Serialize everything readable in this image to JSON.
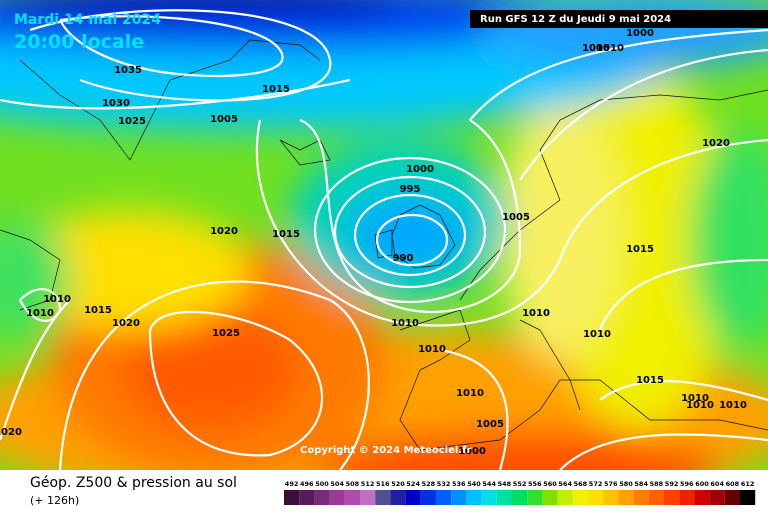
{
  "header": {
    "date": "Mardi 14 mai 2024",
    "time": "20:00 locale",
    "run": "Run GFS 12 Z du Jeudi 9 mai 2024"
  },
  "footer": {
    "title": "Géop. Z500 & pression au sol",
    "lead": "(+ 126h)",
    "copyright": "Copyright © 2024 Meteociel.fr"
  },
  "isobar_labels": [
    "1035",
    "1030",
    "1025",
    "1015",
    "1005",
    "1000",
    "995",
    "990",
    "1020",
    "1015",
    "1010",
    "1010",
    "1015",
    "1020",
    "1025",
    "1005",
    "1010",
    "1010",
    "1010",
    "1010",
    "1015",
    "1010",
    "1005",
    "1000",
    "1020",
    "1015",
    "1010",
    "1010",
    "1010",
    "1000",
    "1005",
    "1010",
    "1020"
  ],
  "colorbar": {
    "labels": [
      492,
      496,
      500,
      504,
      508,
      512,
      516,
      520,
      524,
      528,
      532,
      536,
      540,
      544,
      548,
      552,
      556,
      560,
      564,
      568,
      572,
      576,
      580,
      584,
      588,
      592,
      596,
      600,
      604,
      608,
      612
    ],
    "colors": [
      "#3a0f3a",
      "#5a1a5a",
      "#7a2a7a",
      "#9a3a9a",
      "#b04ab0",
      "#c070c0",
      "#505090",
      "#2020a0",
      "#0000c8",
      "#0030e8",
      "#0060ff",
      "#0090ff",
      "#00c0ff",
      "#00e0e0",
      "#00e0a0",
      "#00e060",
      "#30e030",
      "#80e000",
      "#c0f000",
      "#f0f000",
      "#ffe000",
      "#ffc000",
      "#ffa000",
      "#ff8000",
      "#ff6000",
      "#ff4000",
      "#f02000",
      "#d00000",
      "#a00000",
      "#600000",
      "#000000"
    ]
  }
}
